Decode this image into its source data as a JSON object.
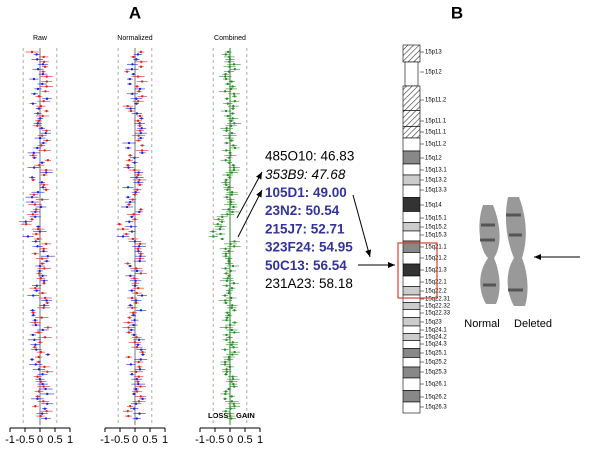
{
  "panel_a": {
    "label": "A",
    "plots": [
      {
        "title": "Raw"
      },
      {
        "title": "Normalized"
      },
      {
        "title": "Combined"
      }
    ],
    "xticks": [
      -1,
      -0.5,
      0,
      0.5,
      1
    ],
    "loss_label": "LOSS",
    "gain_label": "GAIN",
    "clones": [
      {
        "text": "485O10: 46.83",
        "style": "normal"
      },
      {
        "text": "353B9:  47.68",
        "style": "italic"
      },
      {
        "text": "105D1:   49.00",
        "style": "bold"
      },
      {
        "text": "23N2:     50.54",
        "style": "bold"
      },
      {
        "text": "215J7:    52.71",
        "style": "bold"
      },
      {
        "text": "323F24: 54.95",
        "style": "bold"
      },
      {
        "text": "50C13:   56.54",
        "style": "bold"
      },
      {
        "text": "231A23:  58.18",
        "style": "normal"
      }
    ]
  },
  "panel_b": {
    "label": "B",
    "bands": [
      {
        "name": "15p13",
        "stain": "gvar"
      },
      {
        "name": "15p12",
        "stain": "stalk"
      },
      {
        "name": "15p11.2",
        "stain": "gvar"
      },
      {
        "name": "15p11.1",
        "stain": "acen"
      },
      {
        "name": "15q11.1",
        "stain": "acen"
      },
      {
        "name": "15q11.2",
        "stain": "gneg"
      },
      {
        "name": "15q12",
        "stain": "gpos50"
      },
      {
        "name": "15q13.1",
        "stain": "gneg"
      },
      {
        "name": "15q13.2",
        "stain": "gpos25"
      },
      {
        "name": "15q13.3",
        "stain": "gneg"
      },
      {
        "name": "15q14",
        "stain": "gpos100"
      },
      {
        "name": "15q15.1",
        "stain": "gneg"
      },
      {
        "name": "15q15.2",
        "stain": "gpos25"
      },
      {
        "name": "15q15.3",
        "stain": "gneg"
      },
      {
        "name": "15q21.1",
        "stain": "gpos50"
      },
      {
        "name": "15q21.2",
        "stain": "gneg"
      },
      {
        "name": "15q21.3",
        "stain": "gpos100"
      },
      {
        "name": "15q22.1",
        "stain": "gneg"
      },
      {
        "name": "15q22.2",
        "stain": "gpos25"
      },
      {
        "name": "15q22.31",
        "stain": "gneg"
      },
      {
        "name": "15q22.32",
        "stain": "gpos25"
      },
      {
        "name": "15q22.33",
        "stain": "gneg"
      },
      {
        "name": "15q23",
        "stain": "gpos25"
      },
      {
        "name": "15q24.1",
        "stain": "gneg"
      },
      {
        "name": "15q24.2",
        "stain": "gpos25"
      },
      {
        "name": "15q24.3",
        "stain": "gneg"
      },
      {
        "name": "15q25.1",
        "stain": "gpos50"
      },
      {
        "name": "15q25.2",
        "stain": "gneg"
      },
      {
        "name": "15q25.3",
        "stain": "gpos50"
      },
      {
        "name": "15q26.1",
        "stain": "gneg"
      },
      {
        "name": "15q26.2",
        "stain": "gpos50"
      },
      {
        "name": "15q26.3",
        "stain": "gneg"
      }
    ],
    "normal_label": "Normal",
    "deleted_label": "Deleted"
  }
}
